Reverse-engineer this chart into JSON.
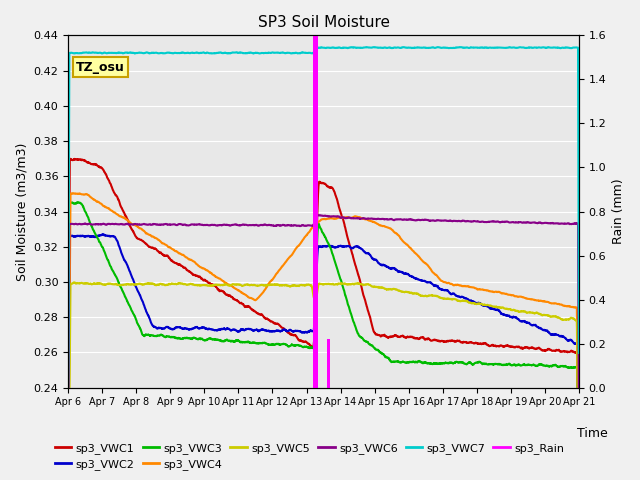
{
  "title": "SP3 Soil Moisture",
  "xlabel": "Time",
  "ylabel_left": "Soil Moisture (m3/m3)",
  "ylabel_right": "Rain (mm)",
  "ylim_left": [
    0.24,
    0.44
  ],
  "ylim_right": [
    0.0,
    1.6
  ],
  "annotation_text": "TZ_osu",
  "annotation_bg": "#ffffa0",
  "annotation_edge": "#c8a000",
  "plot_bg": "#e8e8e8",
  "fig_bg": "#f0f0f0",
  "series_colors": {
    "VWC1": "#cc0000",
    "VWC2": "#0000cc",
    "VWC3": "#00bb00",
    "VWC4": "#ff8800",
    "VWC5": "#cccc00",
    "VWC6": "#880088",
    "VWC7": "#00cccc",
    "Rain": "#ff00ff"
  },
  "legend_labels_row1": [
    "sp3_VWC1",
    "sp3_VWC2",
    "sp3_VWC3",
    "sp3_VWC4",
    "sp3_VWC5",
    "sp3_VWC6"
  ],
  "legend_labels_row2": [
    "sp3_VWC7",
    "sp3_Rain"
  ],
  "xtick_labels": [
    "Apr 6",
    "Apr 7",
    "Apr 8",
    "Apr 9",
    "Apr 10",
    "Apr 11",
    "Apr 12",
    "Apr 13",
    "Apr 14",
    "Apr 15",
    "Apr 16",
    "Apr 17",
    "Apr 18",
    "Apr 19",
    "Apr 20",
    "Apr 21"
  ],
  "grid_color": "#ffffff",
  "linewidth": 1.5
}
